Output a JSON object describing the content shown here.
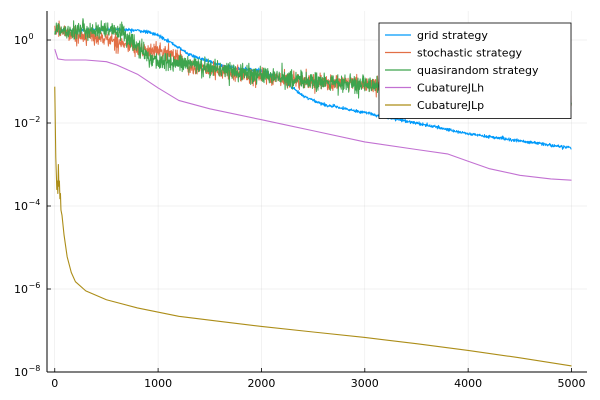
{
  "chart_data": {
    "type": "line",
    "title": "",
    "xlabel": "",
    "ylabel": "",
    "xlim": [
      -75,
      5150
    ],
    "ylim": [
      1e-08,
      5
    ],
    "yscale": "log",
    "grid": true,
    "legend_position": "top-right",
    "x_ticks": [
      {
        "value": 0,
        "label": "0"
      },
      {
        "value": 1000,
        "label": "1000"
      },
      {
        "value": 2000,
        "label": "2000"
      },
      {
        "value": 3000,
        "label": "3000"
      },
      {
        "value": 4000,
        "label": "4000"
      },
      {
        "value": 5000,
        "label": "5000"
      }
    ],
    "y_ticks": [
      {
        "exp": 0,
        "base": "10",
        "sup": "0"
      },
      {
        "exp": -2,
        "base": "10",
        "sup": "−2"
      },
      {
        "exp": -4,
        "base": "10",
        "sup": "−4"
      },
      {
        "exp": -6,
        "base": "10",
        "sup": "−6"
      },
      {
        "exp": -8,
        "base": "10",
        "sup": "−8"
      }
    ],
    "series": [
      {
        "name": "grid strategy",
        "color": "#009AFA",
        "noise": 0.04,
        "x": [
          0,
          400,
          600,
          700,
          800,
          900,
          1000,
          1100,
          1200,
          1300,
          1400,
          1500,
          1600,
          1800,
          2000,
          2200,
          2300,
          2400,
          2600,
          2800,
          3000,
          3200,
          3500,
          4000,
          4500,
          5000
        ],
        "y": [
          1.58,
          1.78,
          1.78,
          1.75,
          1.7,
          1.55,
          1.3,
          0.95,
          0.65,
          0.45,
          0.36,
          0.3,
          0.25,
          0.2,
          0.18,
          0.11,
          0.07,
          0.045,
          0.028,
          0.022,
          0.018,
          0.014,
          0.01,
          0.0055,
          0.0037,
          0.0025
        ]
      },
      {
        "name": "stochastic strategy",
        "color": "#E26F46",
        "noise": 0.18,
        "x": [
          0,
          200,
          400,
          600,
          700,
          800,
          1000,
          1200,
          1300,
          1500,
          2000,
          2500,
          3000,
          3500,
          4000,
          4500,
          5000
        ],
        "y": [
          1.8,
          1.35,
          1.15,
          0.95,
          0.75,
          0.58,
          0.55,
          0.4,
          0.22,
          0.18,
          0.13,
          0.1,
          0.085,
          0.07,
          0.055,
          0.045,
          0.033
        ]
      },
      {
        "name": "quasirandom strategy",
        "color": "#3DA44D",
        "noise": 0.22,
        "x": [
          0,
          500,
          650,
          750,
          900,
          1000,
          1200,
          1400,
          1600,
          2000,
          2500,
          3000,
          3500,
          4000,
          4500,
          5000
        ],
        "y": [
          1.8,
          1.65,
          1.55,
          0.9,
          0.4,
          0.3,
          0.27,
          0.24,
          0.2,
          0.14,
          0.1,
          0.08,
          0.065,
          0.05,
          0.04,
          0.028
        ]
      },
      {
        "name": "CubatureJLh",
        "color": "#C271D2",
        "noise": 0,
        "x": [
          0,
          30,
          100,
          300,
          500,
          600,
          800,
          1000,
          1200,
          1500,
          2000,
          2500,
          3000,
          3500,
          3800,
          4000,
          4200,
          4500,
          4800,
          5000
        ],
        "y": [
          0.6,
          0.35,
          0.33,
          0.33,
          0.3,
          0.25,
          0.15,
          0.07,
          0.035,
          0.022,
          0.012,
          0.0065,
          0.0035,
          0.0023,
          0.0018,
          0.0012,
          0.0008,
          0.00055,
          0.00045,
          0.00042
        ]
      },
      {
        "name": "CubatureJLp",
        "color": "#AC8D18",
        "noise": 0,
        "x": [
          0,
          10,
          20,
          25,
          30,
          35,
          40,
          45,
          50,
          55,
          60,
          70,
          90,
          120,
          160,
          200,
          300,
          500,
          800,
          1200,
          1600,
          2000,
          2500,
          3000,
          3500,
          4000,
          4500,
          5000
        ],
        "y": [
          0.075,
          0.0015,
          0.00025,
          0.0004,
          0.0002,
          0.001,
          0.0003,
          0.0004,
          0.00015,
          0.0002,
          8e-05,
          6e-05,
          2e-05,
          6e-06,
          2.5e-06,
          1.5e-06,
          9e-07,
          5.5e-07,
          3.5e-07,
          2.2e-07,
          1.65e-07,
          1.25e-07,
          9.2e-08,
          6.8e-08,
          4.8e-08,
          3.3e-08,
          2.2e-08,
          1.4e-08
        ]
      }
    ]
  }
}
